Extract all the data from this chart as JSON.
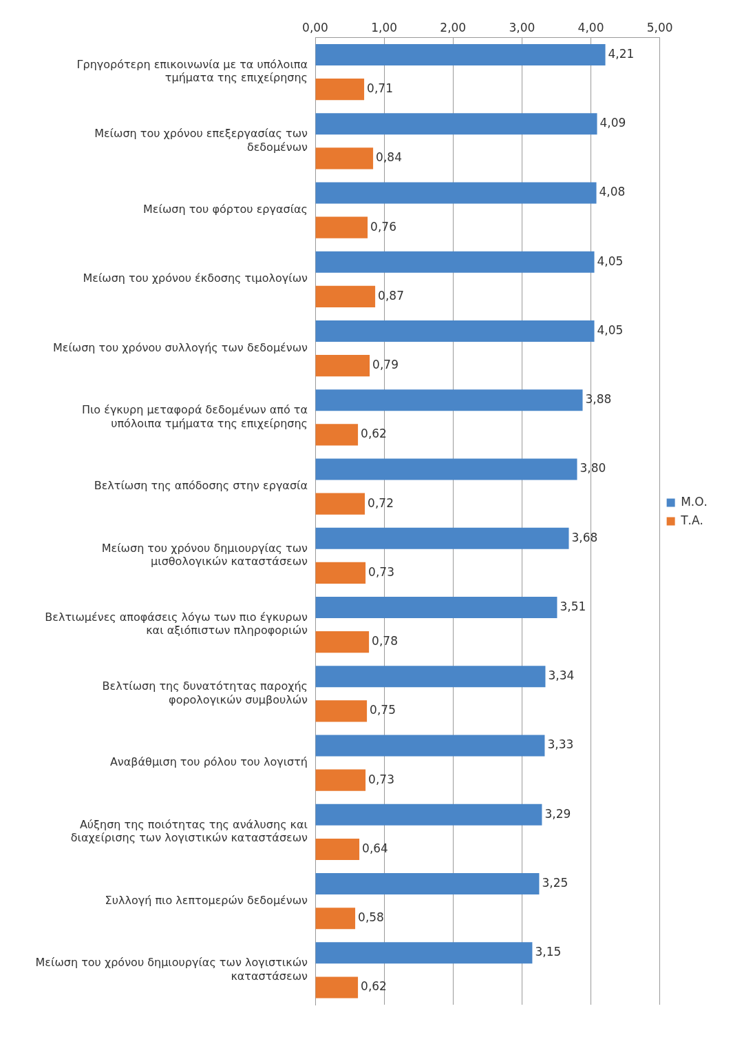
{
  "chart_data": {
    "type": "bar",
    "orientation": "horizontal",
    "categories": [
      "Γρηγορότερη επικοινωνία με τα υπόλοιπα τμήματα της επιχείρησης",
      "Μείωση του χρόνου επεξεργασίας των δεδομένων",
      "Μείωση του φόρτου εργασίας",
      "Μείωση του χρόνου έκδοσης τιμολογίων",
      "Μείωση του χρόνου συλλογής των δεδομένων",
      "Πιο έγκυρη μεταφορά δεδομένων από τα υπόλοιπα τμήματα της επιχείρησης",
      "Βελτίωση της απόδοσης στην εργασία",
      "Μείωση του χρόνου δημιουργίας των μισθολογικών καταστάσεων",
      "Βελτιωμένες αποφάσεις λόγω των πιο έγκυρων και αξιόπιστων πληροφοριών",
      "Βελτίωση της δυνατότητας παροχής φορολογικών συμβουλών",
      "Αναβάθμιση του ρόλου του λογιστή",
      "Αύξηση της ποιότητας της ανάλυσης και διαχείρισης των λογιστικών καταστάσεων",
      "Συλλογή πιο λεπτομερών δεδομένων",
      "Μείωση του χρόνου δημιουργίας των λογιστικών καταστάσεων"
    ],
    "series": [
      {
        "name": "Μ.Ο.",
        "color": "#4a86c8",
        "values": [
          4.21,
          4.09,
          4.08,
          4.05,
          4.05,
          3.88,
          3.8,
          3.68,
          3.51,
          3.34,
          3.33,
          3.29,
          3.25,
          3.15
        ],
        "value_labels": [
          "4,21",
          "4,09",
          "4,08",
          "4,05",
          "4,05",
          "3,88",
          "3,80",
          "3,68",
          "3,51",
          "3,34",
          "3,33",
          "3,29",
          "3,25",
          "3,15"
        ]
      },
      {
        "name": "Τ.Α.",
        "color": "#e8792f",
        "values": [
          0.71,
          0.84,
          0.76,
          0.87,
          0.79,
          0.62,
          0.72,
          0.73,
          0.78,
          0.75,
          0.73,
          0.64,
          0.58,
          0.62
        ],
        "value_labels": [
          "0,71",
          "0,84",
          "0,76",
          "0,87",
          "0,79",
          "0,62",
          "0,72",
          "0,73",
          "0,78",
          "0,75",
          "0,73",
          "0,64",
          "0,58",
          "0,62"
        ]
      }
    ],
    "xlim": [
      0,
      5
    ],
    "xticks": [
      {
        "value": 0,
        "label": "0,00"
      },
      {
        "value": 1,
        "label": "1,00"
      },
      {
        "value": 2,
        "label": "2,00"
      },
      {
        "value": 3,
        "label": "3,00"
      },
      {
        "value": 4,
        "label": "4,00"
      },
      {
        "value": 5,
        "label": "5,00"
      }
    ],
    "grid": "x",
    "legend": "right"
  }
}
